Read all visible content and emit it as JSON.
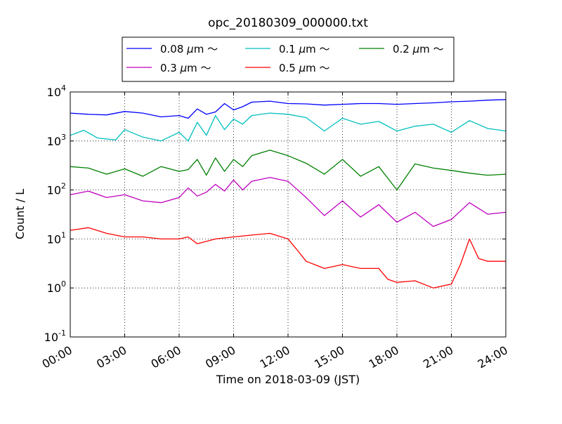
{
  "chart_data": {
    "type": "line",
    "title": "opc_20180309_000000.txt",
    "xlabel": "Time on 2018-03-09 (JST)",
    "ylabel": "Count / L",
    "y_scale": "log",
    "xlim": [
      "00:00",
      "24:00"
    ],
    "ylim": [
      0.1,
      10000
    ],
    "grid": true,
    "legend_position": "top-center",
    "x_ticks": [
      "00:00",
      "03:00",
      "06:00",
      "09:00",
      "12:00",
      "15:00",
      "18:00",
      "21:00",
      "24:00"
    ],
    "y_ticks": [
      {
        "base": "10",
        "exp": "-1",
        "value": 0.1
      },
      {
        "base": "10",
        "exp": "0",
        "value": 1
      },
      {
        "base": "10",
        "exp": "1",
        "value": 10
      },
      {
        "base": "10",
        "exp": "2",
        "value": 100
      },
      {
        "base": "10",
        "exp": "3",
        "value": 1000
      },
      {
        "base": "10",
        "exp": "4",
        "value": 10000
      }
    ],
    "series": [
      {
        "name": "0.08 μm ～",
        "legend_text": "0.08",
        "color": "#0000ff",
        "points": [
          [
            "00:00",
            3700
          ],
          [
            "01:00",
            3500
          ],
          [
            "02:00",
            3400
          ],
          [
            "03:00",
            4000
          ],
          [
            "04:00",
            3700
          ],
          [
            "05:00",
            3100
          ],
          [
            "06:00",
            3300
          ],
          [
            "06:30",
            2900
          ],
          [
            "07:00",
            4500
          ],
          [
            "07:30",
            3500
          ],
          [
            "08:00",
            3900
          ],
          [
            "08:30",
            5800
          ],
          [
            "09:00",
            4300
          ],
          [
            "09:30",
            5000
          ],
          [
            "10:00",
            6200
          ],
          [
            "11:00",
            6500
          ],
          [
            "12:00",
            5800
          ],
          [
            "13:00",
            5700
          ],
          [
            "14:00",
            5400
          ],
          [
            "15:00",
            5600
          ],
          [
            "16:00",
            5800
          ],
          [
            "17:00",
            5800
          ],
          [
            "18:00",
            5600
          ],
          [
            "19:00",
            5800
          ],
          [
            "20:00",
            6000
          ],
          [
            "21:00",
            6300
          ],
          [
            "22:00",
            6500
          ],
          [
            "23:00",
            6800
          ],
          [
            "24:00",
            7000
          ]
        ]
      },
      {
        "name": "0.1 μm ～",
        "legend_text": "0.1",
        "color": "#00bfbf",
        "points": [
          [
            "00:00",
            1300
          ],
          [
            "00:45",
            1650
          ],
          [
            "01:30",
            1150
          ],
          [
            "02:30",
            1050
          ],
          [
            "03:00",
            1700
          ],
          [
            "04:00",
            1200
          ],
          [
            "05:00",
            1000
          ],
          [
            "06:00",
            1500
          ],
          [
            "06:30",
            1000
          ],
          [
            "07:00",
            2400
          ],
          [
            "07:30",
            1300
          ],
          [
            "08:00",
            3300
          ],
          [
            "08:30",
            1700
          ],
          [
            "09:00",
            2800
          ],
          [
            "09:30",
            2200
          ],
          [
            "10:00",
            3300
          ],
          [
            "11:00",
            3700
          ],
          [
            "12:00",
            3500
          ],
          [
            "13:00",
            3000
          ],
          [
            "14:00",
            1600
          ],
          [
            "15:00",
            2900
          ],
          [
            "16:00",
            2200
          ],
          [
            "17:00",
            2500
          ],
          [
            "18:00",
            1600
          ],
          [
            "19:00",
            2000
          ],
          [
            "20:00",
            2200
          ],
          [
            "21:00",
            1500
          ],
          [
            "22:00",
            2600
          ],
          [
            "23:00",
            1800
          ],
          [
            "24:00",
            1600
          ]
        ]
      },
      {
        "name": "0.2 μm ～",
        "legend_text": "0.2",
        "color": "#008000",
        "points": [
          [
            "00:00",
            300
          ],
          [
            "01:00",
            280
          ],
          [
            "02:00",
            210
          ],
          [
            "03:00",
            270
          ],
          [
            "04:00",
            190
          ],
          [
            "05:00",
            300
          ],
          [
            "06:00",
            240
          ],
          [
            "06:30",
            260
          ],
          [
            "07:00",
            420
          ],
          [
            "07:30",
            200
          ],
          [
            "08:00",
            450
          ],
          [
            "08:30",
            240
          ],
          [
            "09:00",
            420
          ],
          [
            "09:30",
            300
          ],
          [
            "10:00",
            500
          ],
          [
            "11:00",
            650
          ],
          [
            "12:00",
            500
          ],
          [
            "13:00",
            350
          ],
          [
            "14:00",
            210
          ],
          [
            "15:00",
            420
          ],
          [
            "16:00",
            190
          ],
          [
            "17:00",
            300
          ],
          [
            "18:00",
            100
          ],
          [
            "19:00",
            340
          ],
          [
            "20:00",
            280
          ],
          [
            "21:00",
            250
          ],
          [
            "22:00",
            220
          ],
          [
            "23:00",
            200
          ],
          [
            "24:00",
            210
          ]
        ]
      },
      {
        "name": "0.3 μm ～",
        "legend_text": "0.3",
        "color": "#bf00bf",
        "points": [
          [
            "00:00",
            80
          ],
          [
            "01:00",
            95
          ],
          [
            "02:00",
            70
          ],
          [
            "03:00",
            80
          ],
          [
            "04:00",
            60
          ],
          [
            "05:00",
            55
          ],
          [
            "06:00",
            70
          ],
          [
            "06:30",
            110
          ],
          [
            "07:00",
            75
          ],
          [
            "07:30",
            90
          ],
          [
            "08:00",
            130
          ],
          [
            "08:30",
            95
          ],
          [
            "09:00",
            160
          ],
          [
            "09:30",
            100
          ],
          [
            "10:00",
            150
          ],
          [
            "11:00",
            180
          ],
          [
            "12:00",
            150
          ],
          [
            "13:00",
            70
          ],
          [
            "14:00",
            30
          ],
          [
            "15:00",
            60
          ],
          [
            "16:00",
            28
          ],
          [
            "17:00",
            50
          ],
          [
            "18:00",
            22
          ],
          [
            "19:00",
            35
          ],
          [
            "20:00",
            18
          ],
          [
            "21:00",
            25
          ],
          [
            "22:00",
            55
          ],
          [
            "23:00",
            32
          ],
          [
            "24:00",
            35
          ]
        ]
      },
      {
        "name": "0.5 μm ～",
        "legend_text": "0.5",
        "color": "#ff0000",
        "points": [
          [
            "00:00",
            15
          ],
          [
            "01:00",
            17
          ],
          [
            "02:00",
            13
          ],
          [
            "03:00",
            11
          ],
          [
            "04:00",
            11
          ],
          [
            "05:00",
            10
          ],
          [
            "06:00",
            10
          ],
          [
            "06:30",
            11
          ],
          [
            "07:00",
            8
          ],
          [
            "08:00",
            10
          ],
          [
            "09:00",
            11
          ],
          [
            "10:00",
            12
          ],
          [
            "11:00",
            13
          ],
          [
            "12:00",
            10
          ],
          [
            "12:30",
            6
          ],
          [
            "13:00",
            3.5
          ],
          [
            "14:00",
            2.5
          ],
          [
            "15:00",
            3
          ],
          [
            "16:00",
            2.5
          ],
          [
            "17:00",
            2.5
          ],
          [
            "17:30",
            1.5
          ],
          [
            "18:00",
            1.3
          ],
          [
            "19:00",
            1.4
          ],
          [
            "20:00",
            1.0
          ],
          [
            "21:00",
            1.2
          ],
          [
            "21:30",
            3
          ],
          [
            "22:00",
            10
          ],
          [
            "22:30",
            4
          ],
          [
            "23:00",
            3.5
          ],
          [
            "24:00",
            3.5
          ]
        ]
      }
    ]
  }
}
